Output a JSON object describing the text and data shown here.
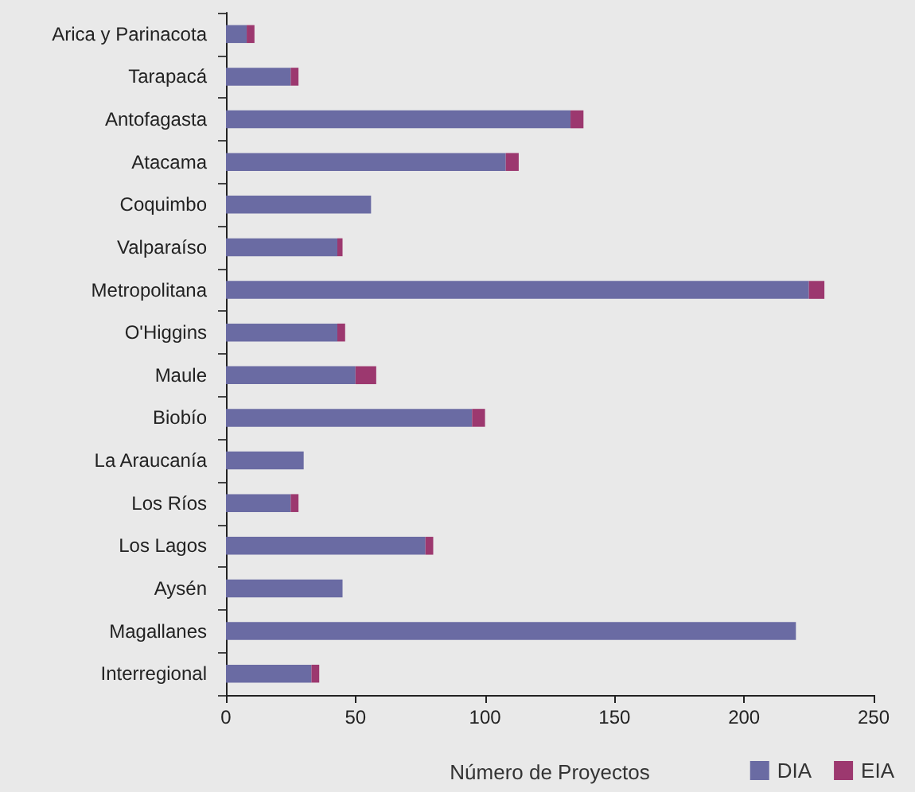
{
  "chart_data": {
    "type": "bar",
    "orientation": "horizontal",
    "stacked": true,
    "xlabel": "Número de Proyectos",
    "categories": [
      "Arica y Parinacota",
      "Tarapacá",
      "Antofagasta",
      "Atacama",
      "Coquimbo",
      "Valparaíso",
      "Metropolitana",
      "O'Higgins",
      "Maule",
      "Biobío",
      "La Araucanía",
      "Los Ríos",
      "Los Lagos",
      "Aysén",
      "Magallanes",
      "Interregional"
    ],
    "series": [
      {
        "name": "DIA",
        "color": "#6a6ba3",
        "values": [
          8,
          25,
          133,
          108,
          56,
          43,
          225,
          43,
          50,
          95,
          30,
          25,
          77,
          45,
          220,
          33
        ]
      },
      {
        "name": "EIA",
        "color": "#9c386f",
        "values": [
          3,
          3,
          5,
          5,
          0,
          2,
          6,
          3,
          8,
          5,
          0,
          3,
          3,
          0,
          0,
          3
        ]
      }
    ],
    "xlim": [
      0,
      250
    ],
    "xticks": [
      0,
      50,
      100,
      150,
      200,
      250
    ],
    "grid": false,
    "legend": "bottom right"
  }
}
